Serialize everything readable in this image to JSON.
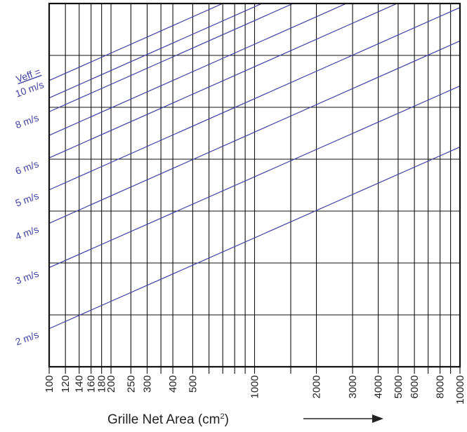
{
  "chart_data": {
    "type": "line",
    "title": "",
    "xlabel": "Grille Net Area (cm",
    "xlabel_sup": "2",
    "xlabel_suffix": ")",
    "x_scale": "log",
    "xlim": [
      100,
      10000
    ],
    "x_tick_labels": [
      "100",
      "120",
      "140",
      "160",
      "180",
      "200",
      "250",
      "300",
      "400",
      "500",
      "1000",
      "2000",
      "3000",
      "4000",
      "5000",
      "6000",
      "8000",
      "10000"
    ],
    "extra_vertical_gridlines": [
      350,
      600,
      700,
      800,
      900,
      1500,
      7000,
      9000
    ],
    "legend_header": "Veff =",
    "series": [
      {
        "name": "2 m/s",
        "left_y_fraction": 0.895,
        "right_y_fraction": 0.395
      },
      {
        "name": "3 m/s",
        "left_y_fraction": 0.727,
        "right_y_fraction": 0.227
      },
      {
        "name": "4 m/s",
        "left_y_fraction": 0.605,
        "right_y_fraction": 0.103
      },
      {
        "name": "5 m/s",
        "left_y_fraction": 0.513,
        "right_y_fraction": 0.011
      },
      {
        "name": "6 m/s",
        "left_y_fraction": 0.425,
        "right_y_fraction": -0.077
      },
      {
        "name": "",
        "left_y_fraction": 0.363,
        "right_y_fraction": -0.139
      },
      {
        "name": "8 m/s",
        "left_y_fraction": 0.298,
        "right_y_fraction": -0.204
      },
      {
        "name": "",
        "left_y_fraction": 0.26,
        "right_y_fraction": -0.242
      },
      {
        "name": "10 m/s",
        "left_y_fraction": 0.212,
        "right_y_fraction": -0.29
      }
    ],
    "grid": true,
    "colors": {
      "series": "#3f43a3",
      "grid": "#111111",
      "label": "#3f43a3",
      "arrow": "#222222"
    }
  },
  "arrow_icon": "right-arrow-icon"
}
